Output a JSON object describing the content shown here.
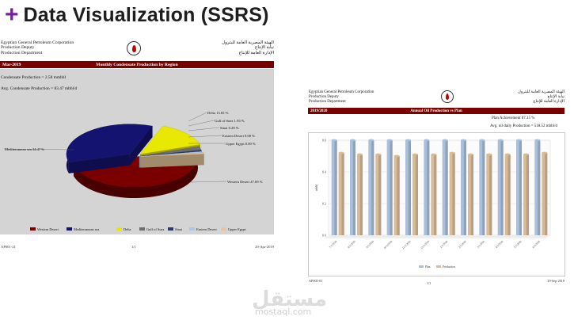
{
  "slide": {
    "heading_symbol": "+",
    "heading": "Data Visualization (SSRS)",
    "accent": "#7a1fa2"
  },
  "report1": {
    "header_left": [
      "Egyptian General Petroleum Corporation",
      "Production Deputy",
      "Production Department"
    ],
    "header_right": [
      "الهيئة المصرية العامة للبترول",
      "نيابة الإنتاج",
      "الإدارة العامة للإنتاج"
    ],
    "period": "Mar-2019",
    "title": "Monthly Condensate Production by Region",
    "kpi1": "Condensate Production = 2.58 mmbbl",
    "kpi2": "Avg. Condensate Production = 83.47 mbbl/d",
    "footer_left": "AP001-21",
    "footer_center": "1/1",
    "footer_right": "29-Apr-2019",
    "bar_color": "#7a0000",
    "chart_data": {
      "type": "pie",
      "title": "",
      "slices": [
        {
          "name": "Western Desert",
          "label": "Western Desert 47.69 %",
          "value": 47.69,
          "color": "#7a0000"
        },
        {
          "name": "Mediterranean sea",
          "label": "Mediterranean sea 34.47 %",
          "value": 34.47,
          "color": "#141470"
        },
        {
          "name": "Delta",
          "label": "Delta 13.65 %",
          "value": 13.65,
          "color": "#e8e800"
        },
        {
          "name": "Gulf of Suez",
          "label": "Gulf of Suez 1.93 %",
          "value": 1.93,
          "color": "#6e6e6e"
        },
        {
          "name": "Sinai",
          "label": "Sinai 0.28 %",
          "value": 0.28,
          "color": "#2b3a6b"
        },
        {
          "name": "Eastern Desert",
          "label": "Eastern Desert 0.00 %",
          "value": 0.0,
          "color": "#aec6e8"
        },
        {
          "name": "Upper Egypt",
          "label": "Upper Egypt 0.00 %",
          "value": 0.0,
          "color": "#e6c79c"
        }
      ],
      "legend_position": "bottom"
    }
  },
  "report2": {
    "header_left": [
      "Egyptian General Petroleum Corporation",
      "Production Deputy",
      "Production Department"
    ],
    "header_right": [
      "الهيئة المصرية العامة للبترول",
      "نيابة الإنتاج",
      "الإدارة العامة للإنتاج"
    ],
    "period": "2019/2020",
    "title": "Annual Oil Production vs Plan",
    "kpi1": "Plan Achievement 87.15 %",
    "kpi2": "Avg. oil daily Production = 518.52 mbbl/d",
    "footer_left": "AP005-01",
    "footer_center": "1/1",
    "footer_right": "29-Sep-2019",
    "chart_data": {
      "type": "bar",
      "categories": [
        "7/1/2019",
        "8/1/2019",
        "9/1/2019",
        "10/1/2019",
        "11/1/2019",
        "12/1/2019",
        "1/1/2020",
        "2/1/2020",
        "3/1/2020",
        "4/1/2020",
        "5/1/2020",
        "6/1/2020"
      ],
      "series": [
        {
          "name": "Plan",
          "color": "#a9bfdb",
          "values": [
            0.6,
            0.6,
            0.6,
            0.6,
            0.6,
            0.6,
            0.6,
            0.6,
            0.6,
            0.6,
            0.6,
            0.6
          ]
        },
        {
          "name": "Production",
          "color": "#d8bb98",
          "values": [
            0.52,
            0.51,
            0.51,
            0.5,
            0.51,
            0.51,
            0.52,
            0.51,
            0.51,
            0.51,
            0.51,
            0.52
          ]
        }
      ],
      "ylim": [
        0,
        0.6
      ],
      "yticks": [
        "0.0",
        "0.2",
        "0.4",
        "0.6"
      ],
      "ylabel": "mbbl",
      "legend_position": "bottom"
    }
  },
  "watermark": {
    "arabic": "مستقل",
    "latin": "mostaql.com"
  }
}
